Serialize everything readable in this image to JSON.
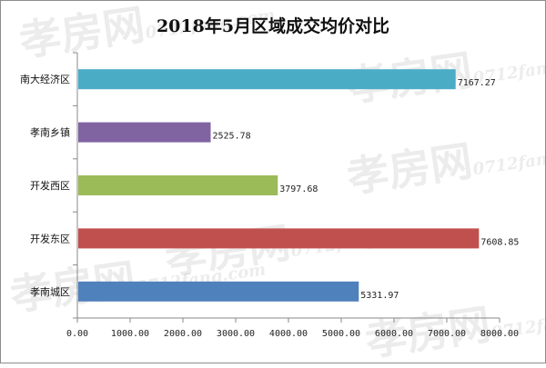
{
  "chart_data": {
    "type": "bar",
    "orientation": "horizontal",
    "title": "2018年5月区域成交均价对比",
    "categories": [
      "南大经济区",
      "孝南乡镇",
      "开发西区",
      "开发东区",
      "孝南城区"
    ],
    "values": [
      7167.27,
      2525.78,
      3797.68,
      7608.85,
      5331.97
    ],
    "value_labels": [
      "7167.27",
      "2525.78",
      "3797.68",
      "7608.85",
      "5331.97"
    ],
    "bar_colors": [
      "#4bacc6",
      "#8064a2",
      "#9bbb59",
      "#c0504d",
      "#4f81bd"
    ],
    "xlim": [
      0,
      8000
    ],
    "x_ticks": [
      0,
      1000,
      2000,
      3000,
      4000,
      5000,
      6000,
      7000,
      8000
    ],
    "x_tick_labels": [
      "0.00",
      "1000.00",
      "2000.00",
      "3000.00",
      "4000.00",
      "5000.00",
      "6000.00",
      "7000.00",
      "8000.00"
    ],
    "grid": false,
    "legend": "none"
  },
  "watermark": {
    "text": "孝房网",
    "sub": "0712fang.com"
  }
}
